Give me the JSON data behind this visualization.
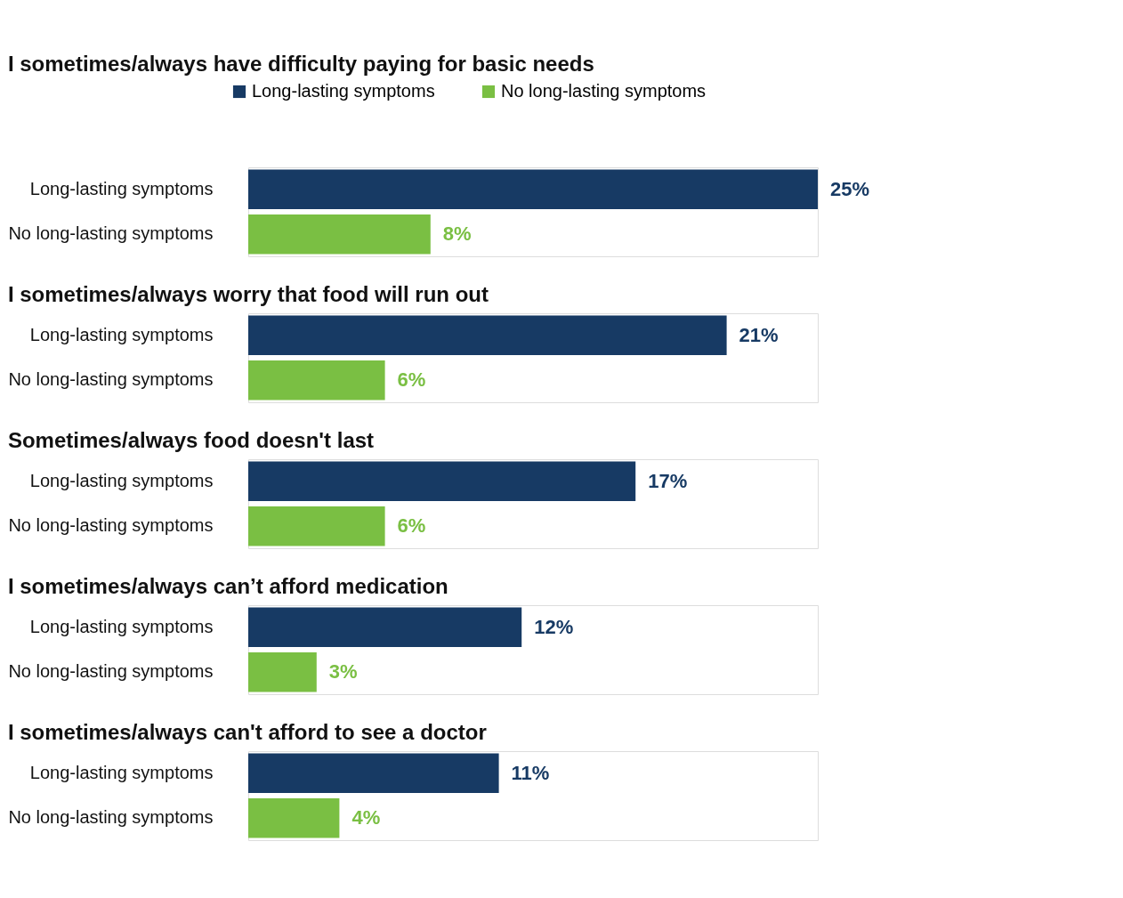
{
  "chart_data": [
    {
      "type": "bar",
      "orientation": "horizontal",
      "title": "I sometimes/always have difficulty paying for basic needs",
      "categories": [
        "Long-lasting symptoms",
        "No long-lasting symptoms"
      ],
      "legend": "top",
      "series": [
        {
          "name": "Long-lasting symptoms",
          "color": "#173a64",
          "values": [
            25,
            null
          ],
          "value_labels": [
            "25%",
            null
          ]
        },
        {
          "name": "No long-lasting symptoms",
          "color": "#7abf43",
          "values": [
            null,
            8
          ],
          "value_labels": [
            null,
            "8%"
          ]
        }
      ]
    },
    {
      "type": "bar",
      "orientation": "horizontal",
      "title": "I sometimes/always worry that food will run out",
      "categories": [
        "Long-lasting symptoms",
        "No long-lasting symptoms"
      ],
      "series": [
        {
          "color": "#173a64",
          "values": [
            21,
            null
          ],
          "value_labels": [
            "21%",
            null
          ]
        },
        {
          "color": "#7abf43",
          "values": [
            null,
            6
          ],
          "value_labels": [
            null,
            "6%"
          ]
        }
      ]
    },
    {
      "type": "bar",
      "orientation": "horizontal",
      "title": "Sometimes/always food doesn't last",
      "categories": [
        "Long-lasting symptoms",
        "No long-lasting symptoms"
      ],
      "series": [
        {
          "color": "#173a64",
          "values": [
            17,
            null
          ],
          "value_labels": [
            "17%",
            null
          ]
        },
        {
          "color": "#7abf43",
          "values": [
            null,
            6
          ],
          "value_labels": [
            null,
            "6%"
          ]
        }
      ]
    },
    {
      "type": "bar",
      "orientation": "horizontal",
      "title": "I sometimes/always can’t afford medication",
      "categories": [
        "Long-lasting symptoms",
        "No long-lasting symptoms"
      ],
      "series": [
        {
          "color": "#173a64",
          "values": [
            12,
            null
          ],
          "value_labels": [
            "12%",
            null
          ]
        },
        {
          "color": "#7abf43",
          "values": [
            null,
            3
          ],
          "value_labels": [
            null,
            "3%"
          ]
        }
      ]
    },
    {
      "type": "bar",
      "orientation": "horizontal",
      "title": "I sometimes/always can't afford to see a doctor",
      "categories": [
        "Long-lasting symptoms",
        "No long-lasting symptoms"
      ],
      "series": [
        {
          "color": "#173a64",
          "values": [
            11,
            null
          ],
          "value_labels": [
            "11%",
            null
          ]
        },
        {
          "color": "#7abf43",
          "values": [
            null,
            4
          ],
          "value_labels": [
            null,
            "4%"
          ]
        }
      ]
    }
  ]
}
